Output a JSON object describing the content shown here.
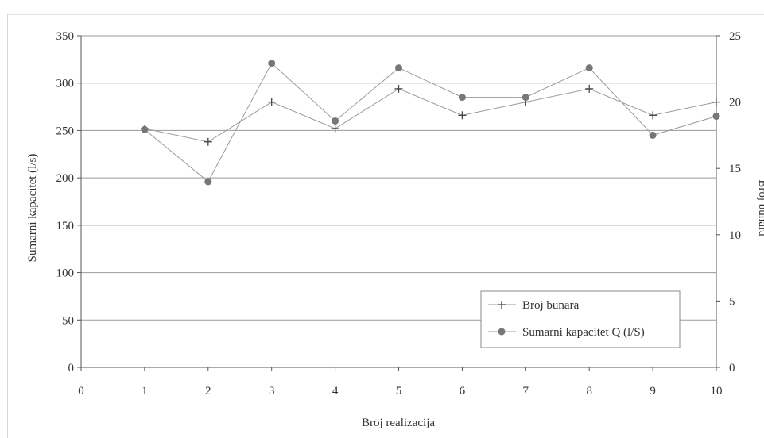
{
  "chart_data": {
    "type": "line",
    "x": [
      1,
      2,
      3,
      4,
      5,
      6,
      7,
      8,
      9,
      10
    ],
    "xlabel": "Broj realizacija",
    "ylabel_left": "Sumarni kapacitet (l/s)",
    "ylabel_right": "Broj bunara",
    "xlim": [
      0,
      10
    ],
    "ylim_left": [
      0,
      350
    ],
    "ylim_right": [
      0,
      25
    ],
    "x_ticks": [
      "0",
      "1",
      "2",
      "3",
      "4",
      "5",
      "6",
      "7",
      "8",
      "9",
      "10"
    ],
    "y_ticks_left": [
      "0",
      "50",
      "100",
      "150",
      "200",
      "250",
      "300",
      "350"
    ],
    "y_ticks_right": [
      "0",
      "5",
      "10",
      "15",
      "20",
      "25"
    ],
    "grid": "horizontal",
    "legend_position": "bottom-right",
    "series": [
      {
        "name": "Broj bunara",
        "axis": "right",
        "marker": "plus",
        "values": [
          18,
          17,
          20,
          18,
          21,
          19,
          20,
          21,
          19,
          20
        ]
      },
      {
        "name": "Sumarni kapacitet Q (l/S)",
        "axis": "left",
        "marker": "circle",
        "values": [
          251,
          196,
          321,
          260,
          316,
          285,
          285,
          316,
          245,
          265
        ]
      }
    ],
    "colors": {
      "line": "#9a9a9a",
      "marker": "#777777",
      "grid": "#9a9a9a",
      "axis": "#555555"
    }
  }
}
